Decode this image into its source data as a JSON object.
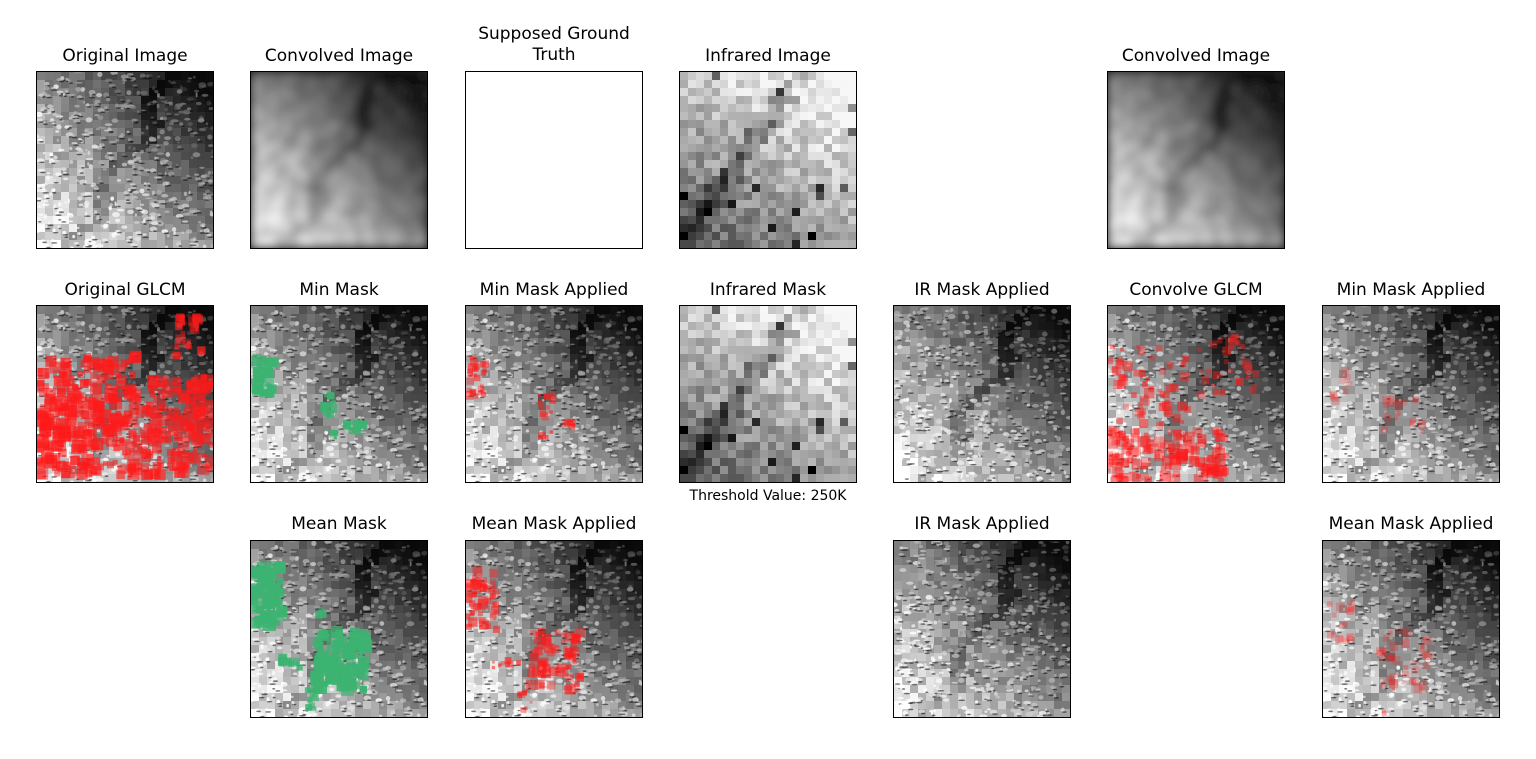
{
  "panels": [
    {
      "id": "p-original-image",
      "title": "Original Image",
      "type": "satellite"
    },
    {
      "id": "p-convolved-image",
      "title": "Convolved Image",
      "type": "blurred"
    },
    {
      "id": "p-supposed-truth",
      "title": "Supposed Ground\nTruth",
      "type": "white"
    },
    {
      "id": "p-infrared-image",
      "title": "Infrared Image",
      "type": "infrared"
    },
    {
      "id": "p-convolved-image-2",
      "title": "Convolved Image",
      "type": "blurred"
    },
    {
      "id": "p-original-glcm",
      "title": "Original GLCM",
      "type": "satellite-red-heavy"
    },
    {
      "id": "p-min-mask",
      "title": "Min Mask",
      "type": "satellite-green-small"
    },
    {
      "id": "p-min-mask-applied",
      "title": "Min Mask Applied",
      "type": "satellite-red-small"
    },
    {
      "id": "p-infrared-mask",
      "title": "Infrared Mask",
      "type": "infrared",
      "caption": "Threshold Value: 250K"
    },
    {
      "id": "p-ir-mask-applied",
      "title": "IR Mask Applied",
      "type": "satellite"
    },
    {
      "id": "p-convolve-glcm",
      "title": "Convolve GLCM",
      "type": "satellite-red-bottom"
    },
    {
      "id": "p-min-mask-applied-2",
      "title": "Min Mask Applied",
      "type": "satellite-red-faint"
    },
    {
      "id": "p-mean-mask",
      "title": "Mean Mask",
      "type": "satellite-green-large"
    },
    {
      "id": "p-mean-mask-applied",
      "title": "Mean Mask Applied",
      "type": "satellite-red-medium"
    },
    {
      "id": "p-ir-mask-applied-2",
      "title": "IR Mask Applied",
      "type": "satellite"
    },
    {
      "id": "p-mean-mask-applied-2",
      "title": "Mean Mask Applied",
      "type": "satellite-red-faint2"
    }
  ],
  "colors": {
    "mask_green": "#3cb371",
    "overlay_red": "#ff1a1a",
    "frame": "#000000"
  }
}
